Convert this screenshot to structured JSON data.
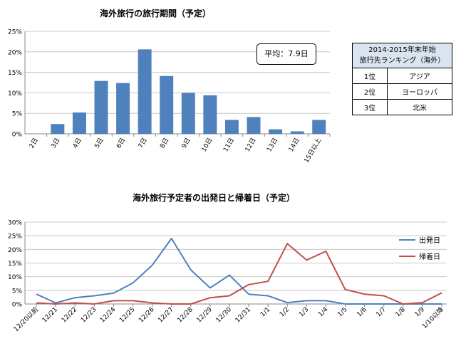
{
  "chart_data": [
    {
      "type": "bar",
      "title": "海外旅行の旅行期間（予定）",
      "categories": [
        "2日",
        "3日",
        "4日",
        "5日",
        "6日",
        "7日",
        "8日",
        "9日",
        "10日",
        "11日",
        "12日",
        "13日",
        "14日",
        "15日以上"
      ],
      "values": [
        0,
        2.4,
        5.2,
        12.9,
        12.4,
        20.6,
        14.1,
        10.0,
        9.4,
        3.4,
        4.1,
        1.1,
        0.6,
        3.4
      ],
      "ylim": [
        0,
        25
      ],
      "yticks": [
        "0%",
        "5%",
        "10%",
        "15%",
        "20%",
        "25%"
      ],
      "grid": true,
      "bar_color": "#4f81bd",
      "annotation": "平均：7.9日"
    },
    {
      "type": "line",
      "title": "海外旅行予定者の出発日と帰着日（予定）",
      "categories": [
        "12/20以前",
        "12/21",
        "12/22",
        "12/23",
        "12/24",
        "12/25",
        "12/26",
        "12/27",
        "12/28",
        "12/29",
        "12/30",
        "12/31",
        "1/1",
        "1/2",
        "1/3",
        "1/4",
        "1/5",
        "1/6",
        "1/7",
        "1/8",
        "1/9",
        "1/10以降"
      ],
      "series": [
        {
          "name": "出発日",
          "color": "#4f81bd",
          "values": [
            3.6,
            0.4,
            2.3,
            3.0,
            4.0,
            7.7,
            14.2,
            24.0,
            12.5,
            5.9,
            10.6,
            3.6,
            3.0,
            0.5,
            1.2,
            1.2,
            0,
            0,
            0,
            0,
            0,
            0
          ]
        },
        {
          "name": "帰着日",
          "color": "#c0504d",
          "values": [
            0.4,
            0,
            0.4,
            0,
            1.2,
            1.2,
            0.4,
            0,
            0,
            2.3,
            3.0,
            7.1,
            8.3,
            22.1,
            16.1,
            19.3,
            5.3,
            3.6,
            3.0,
            0,
            0.5,
            4.1
          ]
        }
      ],
      "ylim": [
        0,
        30
      ],
      "yticks": [
        "0%",
        "5%",
        "10%",
        "15%",
        "20%",
        "25%",
        "30%"
      ],
      "grid": true,
      "legend": "right"
    }
  ],
  "ranking": {
    "header_line1": "2014-2015年末年始",
    "header_line2": "旅行先ランキング（海外）",
    "rows": [
      {
        "rank": "1位",
        "dest": "アジア"
      },
      {
        "rank": "2位",
        "dest": "ヨーロッパ"
      },
      {
        "rank": "3位",
        "dest": "北米"
      }
    ]
  }
}
